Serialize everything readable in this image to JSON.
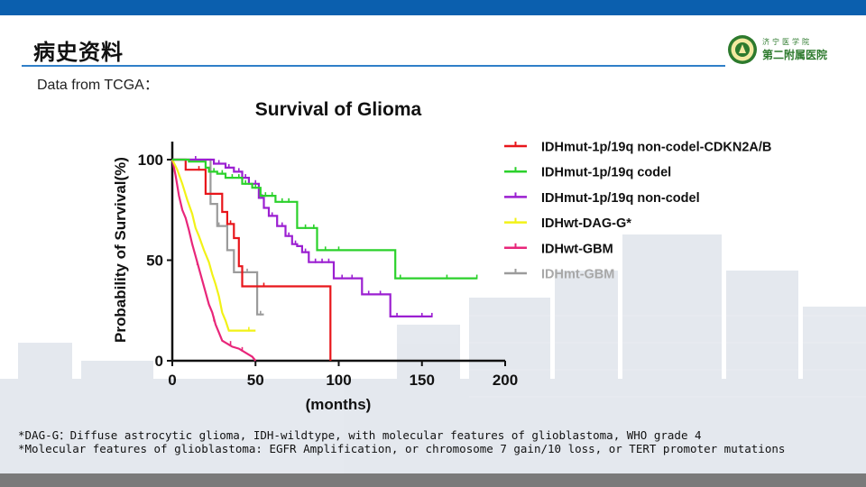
{
  "slide": {
    "title": "病史资料",
    "subtitle": "Data from TCGA：",
    "university_line1": "济宁医学院",
    "university_line2": "第二附属医院"
  },
  "colors": {
    "top_bar": "#0b5fae",
    "bottom_bar": "#7a7a7a",
    "rule": "#2f7fc8",
    "brand_green": "#2d7a2d"
  },
  "footnotes": [
    "*DAG-G：Diffuse astrocytic glioma, IDH-wildtype, with molecular features of glioblastoma, WHO grade 4",
    "*Molecular features of glioblastoma: EGFR Amplification, or chromosome 7 gain/10 loss,  or TERT promoter mutations"
  ],
  "chart_data": {
    "type": "line",
    "subtype": "kaplan-meier",
    "title": "Survival of Glioma",
    "xlabel": "(months)",
    "ylabel": "Probability of Survival(%)",
    "xlim": [
      0,
      200
    ],
    "ylim": [
      0,
      100
    ],
    "xticks": [
      0,
      50,
      100,
      150,
      200
    ],
    "yticks": [
      0,
      50,
      100
    ],
    "grid": false,
    "legend_position": "top-right",
    "series": [
      {
        "name": "IDHmut-1p/19q non-codel-CDKN2A/B",
        "color": "#e8161b",
        "points": [
          [
            0,
            100
          ],
          [
            8,
            100
          ],
          [
            8,
            95
          ],
          [
            20,
            95
          ],
          [
            20,
            83
          ],
          [
            30,
            83
          ],
          [
            30,
            74
          ],
          [
            33,
            74
          ],
          [
            33,
            68
          ],
          [
            37,
            68
          ],
          [
            37,
            61
          ],
          [
            40,
            61
          ],
          [
            40,
            47
          ],
          [
            42,
            47
          ],
          [
            42,
            37
          ],
          [
            95,
            37
          ],
          [
            95,
            0
          ]
        ],
        "censors": [
          [
            16,
            95
          ],
          [
            35,
            68
          ],
          [
            55,
            37
          ]
        ]
      },
      {
        "name": "IDHmut-1p/19q codel",
        "color": "#2bd12b",
        "points": [
          [
            0,
            100
          ],
          [
            10,
            100
          ],
          [
            10,
            99
          ],
          [
            20,
            99
          ],
          [
            20,
            96
          ],
          [
            22,
            96
          ],
          [
            22,
            94
          ],
          [
            27,
            94
          ],
          [
            27,
            93
          ],
          [
            32,
            93
          ],
          [
            32,
            91
          ],
          [
            42,
            91
          ],
          [
            42,
            88
          ],
          [
            48,
            88
          ],
          [
            48,
            86
          ],
          [
            53,
            86
          ],
          [
            53,
            82
          ],
          [
            62,
            82
          ],
          [
            62,
            79
          ],
          [
            75,
            79
          ],
          [
            75,
            66
          ],
          [
            87,
            66
          ],
          [
            87,
            55
          ],
          [
            134,
            55
          ],
          [
            134,
            41
          ],
          [
            183,
            41
          ]
        ],
        "censors": [
          [
            25,
            94
          ],
          [
            30,
            93
          ],
          [
            36,
            91
          ],
          [
            40,
            91
          ],
          [
            44,
            88
          ],
          [
            50,
            86
          ],
          [
            56,
            82
          ],
          [
            60,
            82
          ],
          [
            66,
            79
          ],
          [
            70,
            79
          ],
          [
            80,
            66
          ],
          [
            85,
            66
          ],
          [
            92,
            55
          ],
          [
            100,
            55
          ],
          [
            137,
            41
          ],
          [
            165,
            41
          ],
          [
            183,
            41
          ]
        ]
      },
      {
        "name": "IDHmut-1p/19q non-codel",
        "color": "#9b1fd1",
        "points": [
          [
            0,
            100
          ],
          [
            25,
            100
          ],
          [
            25,
            98
          ],
          [
            32,
            98
          ],
          [
            32,
            96
          ],
          [
            37,
            96
          ],
          [
            37,
            94
          ],
          [
            42,
            94
          ],
          [
            42,
            91
          ],
          [
            46,
            91
          ],
          [
            46,
            88
          ],
          [
            52,
            88
          ],
          [
            52,
            81
          ],
          [
            55,
            81
          ],
          [
            55,
            76
          ],
          [
            58,
            76
          ],
          [
            58,
            72
          ],
          [
            63,
            72
          ],
          [
            63,
            67
          ],
          [
            68,
            67
          ],
          [
            68,
            62
          ],
          [
            72,
            62
          ],
          [
            72,
            58
          ],
          [
            75,
            58
          ],
          [
            75,
            57
          ],
          [
            78,
            57
          ],
          [
            78,
            54
          ],
          [
            82,
            54
          ],
          [
            82,
            49
          ],
          [
            97,
            49
          ],
          [
            97,
            41
          ],
          [
            114,
            41
          ],
          [
            114,
            33
          ],
          [
            131,
            33
          ],
          [
            131,
            22
          ],
          [
            156,
            22
          ]
        ],
        "censors": [
          [
            14,
            100
          ],
          [
            28,
            98
          ],
          [
            34,
            96
          ],
          [
            40,
            94
          ],
          [
            44,
            91
          ],
          [
            50,
            88
          ],
          [
            54,
            81
          ],
          [
            60,
            72
          ],
          [
            66,
            67
          ],
          [
            70,
            62
          ],
          [
            74,
            58
          ],
          [
            80,
            54
          ],
          [
            86,
            49
          ],
          [
            90,
            49
          ],
          [
            94,
            49
          ],
          [
            102,
            41
          ],
          [
            108,
            41
          ],
          [
            118,
            33
          ],
          [
            125,
            33
          ],
          [
            135,
            22
          ],
          [
            150,
            22
          ],
          [
            156,
            22
          ]
        ]
      },
      {
        "name": "IDHwt-DAG-G*",
        "color": "#f2f217",
        "points": [
          [
            0,
            100
          ],
          [
            3,
            95
          ],
          [
            6,
            88
          ],
          [
            9,
            80
          ],
          [
            12,
            73
          ],
          [
            14,
            66
          ],
          [
            16,
            62
          ],
          [
            19,
            55
          ],
          [
            22,
            49
          ],
          [
            24,
            43
          ],
          [
            26,
            38
          ],
          [
            28,
            32
          ],
          [
            30,
            24
          ],
          [
            32,
            20
          ],
          [
            34,
            15
          ],
          [
            50,
            15
          ]
        ],
        "censors": [
          [
            46,
            15
          ]
        ]
      },
      {
        "name": "IDHwt-GBM",
        "color": "#e8267a",
        "points": [
          [
            0,
            100
          ],
          [
            2,
            92
          ],
          [
            4,
            82
          ],
          [
            6,
            75
          ],
          [
            8,
            71
          ],
          [
            10,
            65
          ],
          [
            12,
            58
          ],
          [
            14,
            52
          ],
          [
            16,
            46
          ],
          [
            18,
            40
          ],
          [
            20,
            34
          ],
          [
            22,
            28
          ],
          [
            24,
            24
          ],
          [
            26,
            18
          ],
          [
            28,
            14
          ],
          [
            30,
            10
          ],
          [
            32,
            9
          ],
          [
            36,
            7
          ],
          [
            40,
            6
          ],
          [
            44,
            4
          ],
          [
            46,
            3
          ],
          [
            48,
            2
          ],
          [
            50,
            0
          ]
        ],
        "censors": [
          [
            15,
            48
          ],
          [
            25,
            20
          ],
          [
            35,
            8
          ],
          [
            42,
            5
          ]
        ]
      },
      {
        "name": "IDHmt-GBM",
        "color": "#9b9b9b",
        "points": [
          [
            0,
            100
          ],
          [
            23,
            100
          ],
          [
            23,
            78
          ],
          [
            27,
            78
          ],
          [
            27,
            67
          ],
          [
            33,
            67
          ],
          [
            33,
            55
          ],
          [
            37,
            55
          ],
          [
            37,
            44
          ],
          [
            51,
            44
          ],
          [
            51,
            23
          ],
          [
            55,
            23
          ]
        ],
        "censors": [
          [
            28,
            67
          ],
          [
            45,
            44
          ],
          [
            53,
            23
          ]
        ]
      }
    ]
  }
}
